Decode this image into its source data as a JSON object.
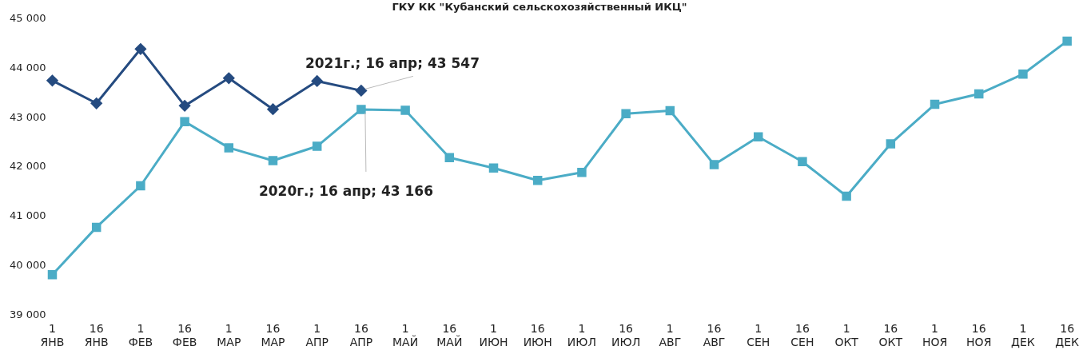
{
  "chart_data": {
    "type": "line",
    "title": "ГКУ КК \"Кубанский сельскохозяйственный ИКЦ\"",
    "categories": [
      "1\nЯНВ",
      "16\nЯНВ",
      "1\nФЕВ",
      "16\nФЕВ",
      "1\nМАР",
      "16\nМАР",
      "1\nАПР",
      "16\nАПР",
      "1\nМАЙ",
      "16\nМАЙ",
      "1\nИЮН",
      "16\nИЮН",
      "1\nИЮЛ",
      "16\nИЮЛ",
      "1\nАВГ",
      "16\nАВГ",
      "1\nСЕН",
      "16\nСЕН",
      "1\nОКТ",
      "16\nОКТ",
      "1\nНОЯ",
      "16\nНОЯ",
      "1\nДЕК",
      "16\nДЕК"
    ],
    "series": [
      {
        "color": "#4bacc6",
        "marker": "square",
        "values": [
          39820,
          40780,
          41620,
          42920,
          42390,
          42130,
          42420,
          43166,
          43150,
          42190,
          41980,
          41730,
          41890,
          43080,
          43140,
          42050,
          42610,
          42110,
          41410,
          42470,
          43270,
          43480,
          43880,
          44550
        ]
      },
      {
        "color": "#254b80",
        "marker": "diamond",
        "values": [
          43750,
          43290,
          44390,
          43240,
          43800,
          43170,
          43740,
          43547,
          null,
          null,
          null,
          null,
          null,
          null,
          null,
          null,
          null,
          null,
          null,
          null,
          null,
          null,
          null,
          null
        ]
      }
    ],
    "ylim": [
      39000,
      45000
    ],
    "yticks": [
      {
        "value": 39000,
        "label": "39 000"
      },
      {
        "value": 40000,
        "label": "40 000"
      },
      {
        "value": 41000,
        "label": "41 000"
      },
      {
        "value": 42000,
        "label": "42 000"
      },
      {
        "value": 43000,
        "label": "43 000"
      },
      {
        "value": 44000,
        "label": "44 000"
      },
      {
        "value": 45000,
        "label": "45 000"
      }
    ],
    "grid": false,
    "legend": false,
    "annotations": [
      {
        "text": "2021г.; 16 апр; 43 547",
        "x": "16\nАПР",
        "y": 43547
      },
      {
        "text": "2020г.; 16 апр; 43 166",
        "x": "16\nАПР",
        "y": 43166
      }
    ]
  }
}
